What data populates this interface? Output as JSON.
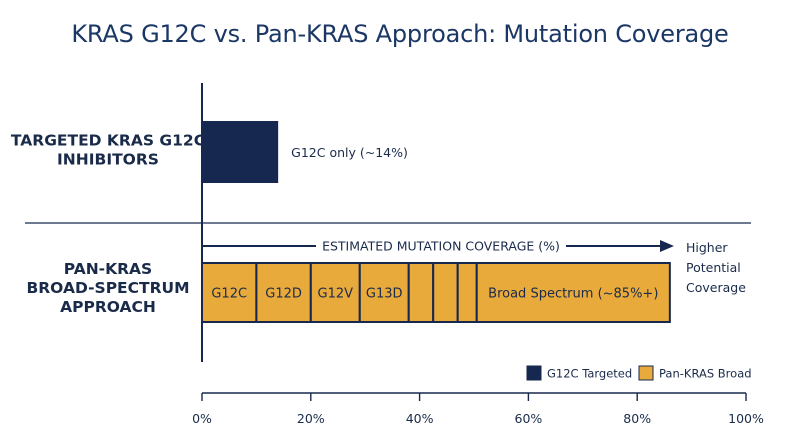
{
  "colors": {
    "navy": "#16284f",
    "gold": "#e9aa3c",
    "text": "#1a2b4a",
    "title": "#1b3766"
  },
  "chart_data": {
    "type": "bar",
    "title": "KRAS G12C vs. Pan-KRAS Approach: Mutation Coverage",
    "categories": [
      "TARGETED KRAS G12C INHIBITORS",
      "PAN-KRAS BROAD-SPECTRUM APPROACH"
    ],
    "category_lines": [
      [
        "TARGETED KRAS G12C",
        "INHIBITORS"
      ],
      [
        "PAN-KRAS",
        "BROAD-SPECTRUM",
        "APPROACH"
      ]
    ],
    "series": [
      {
        "name": "G12C Targeted",
        "values": [
          14,
          null
        ]
      },
      {
        "name": "Pan-KRAS Broad",
        "values": [
          null,
          85
        ]
      }
    ],
    "bar_annotation": "G12C only (~14%)",
    "pan_segments": [
      {
        "label": "G12C",
        "start": 0,
        "end": 10
      },
      {
        "label": "G12D",
        "start": 10,
        "end": 20
      },
      {
        "label": "G12V",
        "start": 20,
        "end": 29
      },
      {
        "label": "G13D",
        "start": 29,
        "end": 38
      },
      {
        "label": "",
        "start": 38,
        "end": 42.5
      },
      {
        "label": "",
        "start": 42.5,
        "end": 47
      },
      {
        "label": "",
        "start": 47,
        "end": 50.5
      },
      {
        "label": "Broad Spectrum (~85%+)",
        "start": 50.5,
        "end": 86
      }
    ],
    "arrow_label": "ESTIMATED MUTATION COVERAGE (%)",
    "arrow_end_label": [
      "Higher",
      "Potential",
      "Coverage"
    ],
    "xlim": [
      0,
      100
    ],
    "xticks": [
      "0%",
      "20%",
      "40%",
      "60%",
      "80%",
      "100%"
    ],
    "xtick_values": [
      0,
      20,
      40,
      60,
      80,
      100
    ],
    "legend": [
      {
        "label": "G12C Targeted",
        "color": "#16284f"
      },
      {
        "label": "Pan-KRAS Broad",
        "color": "#e9aa3c"
      }
    ],
    "legend_position": "bottom-right"
  }
}
